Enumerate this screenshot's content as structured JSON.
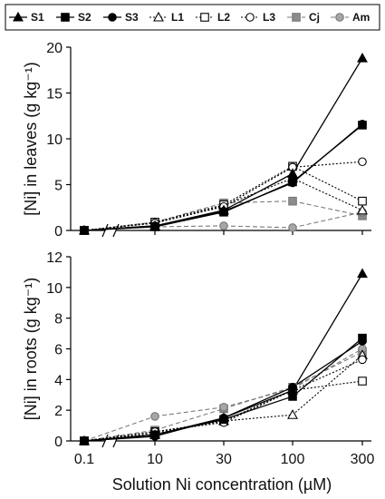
{
  "chart_data": {
    "type": "line",
    "x_axis": {
      "categories": [
        "0.1",
        "10",
        "30",
        "100",
        "300"
      ],
      "label": "Solution Ni concentration (µM)",
      "axis_break_between": [
        "0.1",
        "10"
      ]
    },
    "legend": {
      "placement": "top",
      "entries": [
        {
          "name": "S1",
          "marker": "filled-triangle",
          "line": "solid",
          "color": "#000000"
        },
        {
          "name": "S2",
          "marker": "filled-square",
          "line": "solid",
          "color": "#000000"
        },
        {
          "name": "S3",
          "marker": "filled-circle",
          "line": "solid",
          "color": "#000000"
        },
        {
          "name": "L1",
          "marker": "open-triangle",
          "line": "dotted",
          "color": "#000000"
        },
        {
          "name": "L2",
          "marker": "open-square",
          "line": "dotted",
          "color": "#000000"
        },
        {
          "name": "L3",
          "marker": "open-circle",
          "line": "dotted",
          "color": "#000000"
        },
        {
          "name": "Cj",
          "marker": "gray-square",
          "line": "dashed",
          "color": "#8c8c8c"
        },
        {
          "name": "Am",
          "marker": "gray-circle",
          "line": "dashed",
          "color": "#8c8c8c"
        }
      ]
    },
    "panels": [
      {
        "panel": "leaves",
        "ylabel": "[Ni] in leaves (g kg⁻¹)",
        "ylim": [
          0,
          20
        ],
        "yticks": [
          0,
          5,
          10,
          15,
          20
        ],
        "grid": false,
        "series": [
          {
            "name": "S1",
            "values": [
              0,
              0.5,
              2.2,
              6.2,
              18.8
            ]
          },
          {
            "name": "S2",
            "values": [
              0,
              0.4,
              2.0,
              5.3,
              11.5
            ]
          },
          {
            "name": "S3",
            "values": [
              0,
              0.5,
              2.1,
              5.2,
              11.6
            ]
          },
          {
            "name": "L1",
            "values": [
              0,
              0.8,
              2.7,
              5.7,
              2.2
            ]
          },
          {
            "name": "L2",
            "values": [
              0,
              0.9,
              2.8,
              7.0,
              3.2
            ]
          },
          {
            "name": "L3",
            "values": [
              0,
              0.8,
              2.6,
              6.9,
              7.5
            ]
          },
          {
            "name": "Cj",
            "values": [
              0,
              0.9,
              3.0,
              3.2,
              1.6
            ]
          },
          {
            "name": "Am",
            "values": [
              0,
              0.4,
              0.5,
              0.3,
              2.0
            ]
          }
        ]
      },
      {
        "panel": "roots",
        "ylabel": "[Ni] in roots (g kg⁻¹)",
        "ylim": [
          0,
          12
        ],
        "yticks": [
          0,
          2,
          4,
          6,
          8,
          10,
          12
        ],
        "grid": false,
        "series": [
          {
            "name": "S1",
            "values": [
              0,
              0.4,
              1.5,
              3.3,
              10.9
            ]
          },
          {
            "name": "S2",
            "values": [
              0,
              0.4,
              1.4,
              2.9,
              6.7
            ]
          },
          {
            "name": "S3",
            "values": [
              0,
              0.3,
              1.5,
              3.5,
              6.5
            ]
          },
          {
            "name": "L1",
            "values": [
              0,
              0.5,
              1.3,
              1.7,
              5.6
            ]
          },
          {
            "name": "L2",
            "values": [
              0,
              0.6,
              1.3,
              3.3,
              3.9
            ]
          },
          {
            "name": "L3",
            "values": [
              0,
              0.6,
              1.2,
              3.3,
              5.3
            ]
          },
          {
            "name": "Cj",
            "values": [
              0,
              0.7,
              2.1,
              3.5,
              5.8
            ]
          },
          {
            "name": "Am",
            "values": [
              0,
              1.6,
              2.2,
              3.4,
              6.0
            ]
          }
        ]
      }
    ]
  }
}
